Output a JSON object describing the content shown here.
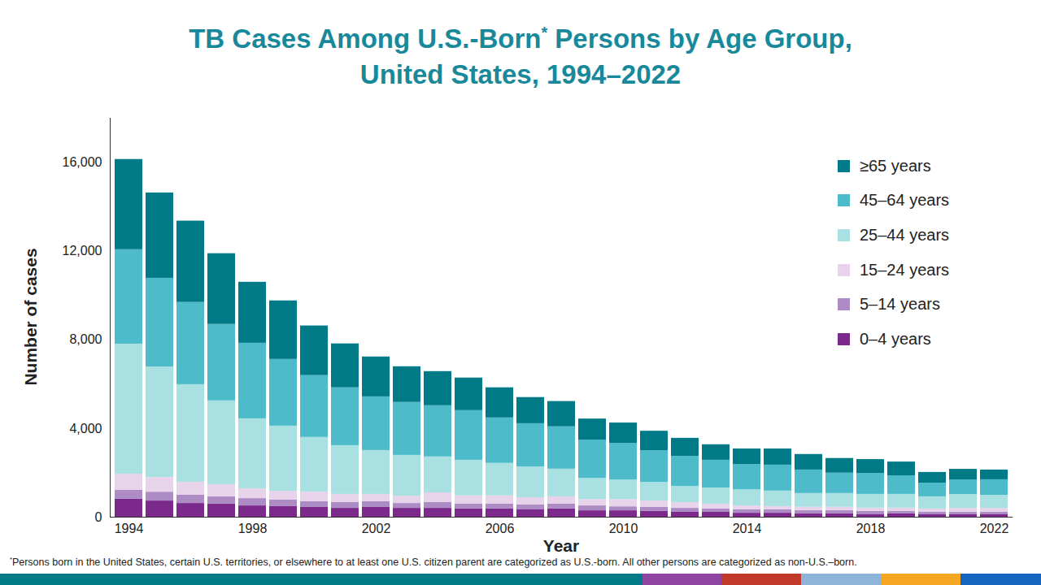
{
  "chart_data": {
    "type": "bar",
    "title": "TB Cases Among U.S.-Born* Persons by Age Group, United States, 1994–2022",
    "x_label": "Year",
    "y_label": "Number of cases",
    "footnote": "*Persons born in the United States, certain U.S. territories, or elsewhere to at least one U.S. citizen parent are categorized as U.S.-born. All other persons are categorized as non-U.S.–born.",
    "categories": [
      "1994",
      null,
      null,
      null,
      "1998",
      null,
      null,
      null,
      "2002",
      null,
      null,
      null,
      "2006",
      null,
      null,
      null,
      "2010",
      null,
      null,
      null,
      "2014",
      null,
      null,
      null,
      "2018",
      null,
      null,
      null,
      "2022"
    ],
    "stacked": true,
    "grid": false,
    "legend": "top-right",
    "ylim": [
      0,
      18000
    ],
    "yticks": [
      0,
      {
        "value": 4000,
        "label": "4,000"
      },
      {
        "value": 8000,
        "label": "8,000"
      },
      {
        "value": 12000,
        "label": "12,000"
      },
      {
        "value": 16000,
        "label": "16,000"
      }
    ],
    "series": [
      {
        "name": "0–4 years",
        "color": "#7b2a8c",
        "values": [
          810,
          730,
          620,
          590,
          510,
          480,
          440,
          400,
          440,
          400,
          400,
          370,
          370,
          330,
          370,
          290,
          290,
          260,
          220,
          220,
          180,
          180,
          150,
          150,
          110,
          150,
          110,
          110,
          110
        ]
      },
      {
        "name": "5–14 years",
        "color": "#ad8cc6",
        "values": [
          400,
          400,
          370,
          330,
          330,
          290,
          260,
          260,
          260,
          220,
          260,
          220,
          220,
          220,
          220,
          220,
          180,
          180,
          180,
          150,
          150,
          150,
          150,
          150,
          150,
          110,
          110,
          110,
          110
        ]
      },
      {
        "name": "15–24 years",
        "color": "#e8d4ea",
        "values": [
          730,
          660,
          590,
          550,
          440,
          400,
          440,
          370,
          330,
          330,
          440,
          370,
          370,
          330,
          330,
          290,
          330,
          290,
          260,
          220,
          180,
          150,
          150,
          150,
          150,
          150,
          150,
          180,
          180
        ]
      },
      {
        "name": "25–44 years",
        "color": "#a9e1e2",
        "values": [
          5870,
          4990,
          4400,
          3780,
          3160,
          2940,
          2460,
          2200,
          1980,
          1840,
          1620,
          1610,
          1470,
          1390,
          1250,
          950,
          880,
          840,
          730,
          730,
          730,
          700,
          620,
          620,
          620,
          620,
          550,
          620,
          590
        ]
      },
      {
        "name": "45–64 years",
        "color": "#4dbbc9",
        "values": [
          4260,
          4000,
          3710,
          3450,
          3410,
          3010,
          2790,
          2610,
          2420,
          2390,
          2310,
          2240,
          2050,
          1950,
          1910,
          1730,
          1650,
          1430,
          1360,
          1250,
          1140,
          1170,
          1060,
          920,
          950,
          840,
          620,
          660,
          700
        ]
      },
      {
        "name": "≥65 years",
        "color": "#007a87",
        "values": [
          4070,
          3850,
          3670,
          3190,
          2750,
          2640,
          2240,
          1980,
          1800,
          1610,
          1540,
          1470,
          1360,
          1180,
          1140,
          950,
          920,
          880,
          810,
          700,
          700,
          730,
          700,
          660,
          620,
          620,
          480,
          480,
          440
        ]
      }
    ]
  }
}
